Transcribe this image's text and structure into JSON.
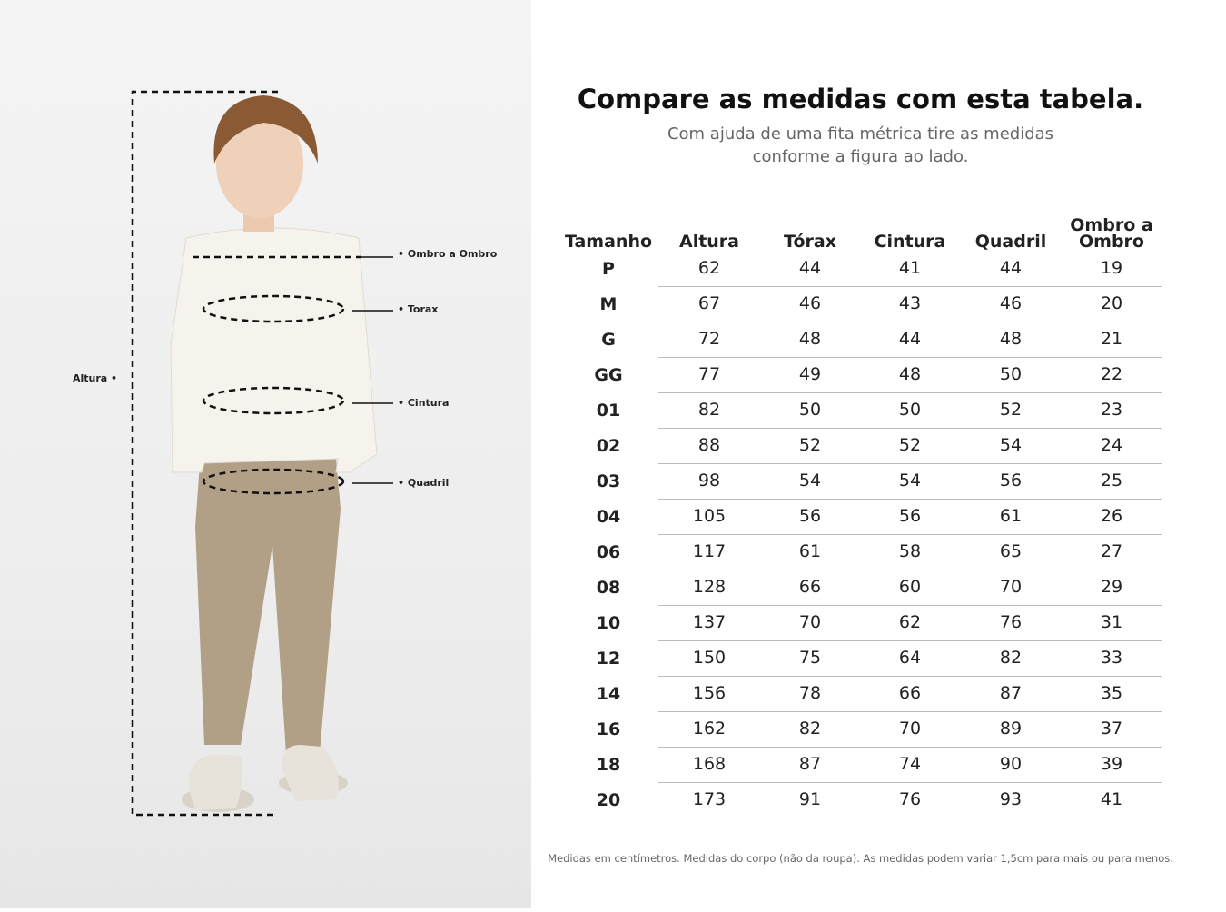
{
  "measure_labels": {
    "altura": "Altura •",
    "ombro": "• Ombro a Ombro",
    "torax": "• Torax",
    "cintura": "• Cintura",
    "quadril": "• Quadril"
  },
  "header": {
    "title": "Compare as medidas com esta tabela.",
    "subtitle": [
      "Com ajuda de uma fita métrica tire as medidas",
      "conforme a figura ao lado."
    ]
  },
  "table": {
    "columns": [
      "Tamanho",
      "Altura",
      "Tórax",
      "Cintura",
      "Quadril",
      "Ombro a Ombro"
    ],
    "rows": [
      [
        "P",
        62,
        44,
        41,
        44,
        19
      ],
      [
        "M",
        67,
        46,
        43,
        46,
        20
      ],
      [
        "G",
        72,
        48,
        44,
        48,
        21
      ],
      [
        "GG",
        77,
        49,
        48,
        50,
        22
      ],
      [
        "01",
        82,
        50,
        50,
        52,
        23
      ],
      [
        "02",
        88,
        52,
        52,
        54,
        24
      ],
      [
        "03",
        98,
        54,
        54,
        56,
        25
      ],
      [
        "04",
        105,
        56,
        56,
        61,
        26
      ],
      [
        "06",
        117,
        61,
        58,
        65,
        27
      ],
      [
        "08",
        128,
        66,
        60,
        70,
        29
      ],
      [
        "10",
        137,
        70,
        62,
        76,
        31
      ],
      [
        "12",
        150,
        75,
        64,
        82,
        33
      ],
      [
        "14",
        156,
        78,
        66,
        87,
        35
      ],
      [
        "16",
        162,
        82,
        70,
        89,
        37
      ],
      [
        "18",
        168,
        87,
        74,
        90,
        39
      ],
      [
        "20",
        173,
        91,
        76,
        93,
        41
      ]
    ]
  },
  "footnote": "Medidas em centímetros. Medidas do corpo (não da roupa). As medidas podem variar 1,5cm para mais ou para menos."
}
